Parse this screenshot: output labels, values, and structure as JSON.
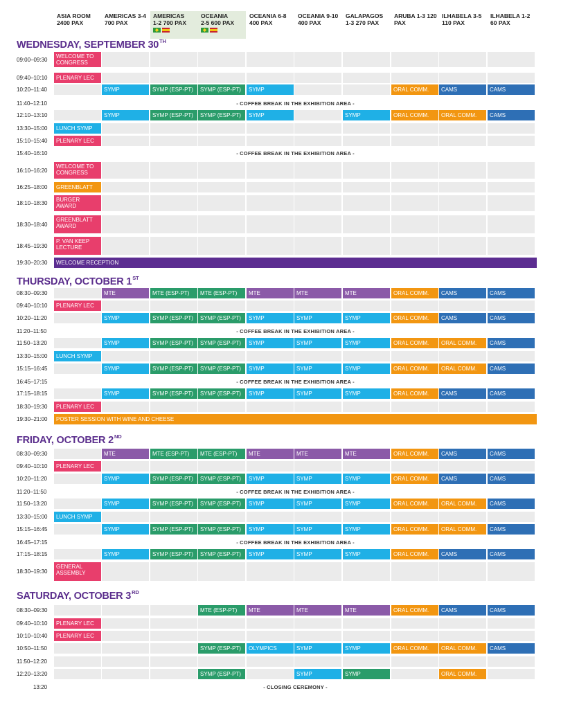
{
  "header": {
    "columns": [
      {
        "name": "ASIA ROOM",
        "cap": "2400 PAX"
      },
      {
        "name": "AMERICAS 3-4",
        "cap": "700 PAX"
      },
      {
        "name": "AMERICAS",
        "cap": "1-2 700 PAX",
        "flags": true
      },
      {
        "name": "OCEANIA",
        "cap": "2-5 600 PAX",
        "flags": true
      },
      {
        "name": "OCEANIA 6-8",
        "cap": "400 PAX"
      },
      {
        "name": "OCEANIA 9-10",
        "cap": "400 PAX"
      },
      {
        "name": "GALAPAGOS",
        "cap": "1-3 270 PAX"
      },
      {
        "name": "ARUBA 1-3 120",
        "cap": "PAX"
      },
      {
        "name": "ILHABELA 3-5",
        "cap": "110 PAX"
      },
      {
        "name": "ILHABELA 1-2",
        "cap": "60 PAX"
      }
    ]
  },
  "colors": {
    "pink": "#e83e6c",
    "blue": "#1fb0e6",
    "green": "#2a9c6a",
    "orange": "#f29611",
    "navy": "#2e6fb5",
    "purple": "#8b5aa8",
    "deeppurple": "#5c2d91",
    "gray": "#ebebeb"
  },
  "days": [
    {
      "title": "WEDNESDAY, SEPTEMBER 30",
      "sup": "TH",
      "rows": [
        {
          "time": "09:00–09:30",
          "cells": [
            [
              "WELCOME TO CONGRESS",
              "pink"
            ]
          ]
        },
        {
          "time": "09:40–10:10",
          "cells": [
            [
              "PLENARY LEC",
              "pink"
            ]
          ]
        },
        {
          "time": "10:20–11:40",
          "cells": [
            null,
            [
              "SYMP",
              "blue"
            ],
            [
              "SYMP (ESP-PT)",
              "green"
            ],
            [
              "SYMP (ESP-PT)",
              "green"
            ],
            [
              "SYMP",
              "blue"
            ],
            null,
            null,
            [
              "ORAL COMM.",
              "orange"
            ],
            [
              "CAMS",
              "navy"
            ],
            [
              "CAMS",
              "navy"
            ]
          ]
        },
        {
          "time": "11:40–12:10",
          "break": "- COFFEE BREAK IN THE EXHIBITION AREA -"
        },
        {
          "time": "12:10–13:10",
          "cells": [
            null,
            [
              "SYMP",
              "blue"
            ],
            [
              "SYMP (ESP-PT)",
              "green"
            ],
            [
              "SYMP (ESP-PT)",
              "green"
            ],
            [
              "SYMP",
              "blue"
            ],
            null,
            [
              "SYMP",
              "blue"
            ],
            [
              "ORAL COMM.",
              "orange"
            ],
            [
              "ORAL COMM.",
              "orange"
            ],
            [
              "CAMS",
              "navy"
            ]
          ]
        },
        {
          "time": "13:30–15:00",
          "cells": [
            [
              "LUNCH SYMP",
              "blue"
            ]
          ]
        },
        {
          "time": "15:10–15:40",
          "cells": [
            [
              "PLENARY LEC",
              "pink"
            ]
          ]
        },
        {
          "time": "15:40–16:10",
          "break": "- COFFEE BREAK IN THE EXHIBITION AREA -"
        },
        {
          "time": "16:10–16:20",
          "cells": [
            [
              "WELCOME TO CONGRESS",
              "pink"
            ]
          ]
        },
        {
          "time": "16:25–18:00",
          "cells": [
            [
              "GREENBLATT",
              "orange"
            ]
          ]
        },
        {
          "time": "18:10–18:30",
          "cells": [
            [
              "BURGER AWARD",
              "pink"
            ]
          ]
        },
        {
          "time": "18:30–18:40",
          "cells": [
            [
              "GREENBLATT AWARD",
              "pink"
            ]
          ]
        },
        {
          "time": "18:45–19:30",
          "cells": [
            [
              "P. VAN KEEP LECTURE",
              "pink"
            ]
          ]
        },
        {
          "time": "19:30–20:30",
          "span": [
            "WELCOME RECEPTION",
            "deeppurple"
          ]
        }
      ]
    },
    {
      "title": "THURSDAY, OCTOBER 1",
      "sup": "ST",
      "rows": [
        {
          "time": "08:30–09:30",
          "cells": [
            null,
            [
              "MTE",
              "purple"
            ],
            [
              "MTE (ESP-PT)",
              "green"
            ],
            [
              "MTE (ESP-PT)",
              "green"
            ],
            [
              "MTE",
              "purple"
            ],
            [
              "MTE",
              "purple"
            ],
            [
              "MTE",
              "purple"
            ],
            [
              "ORAL COMM.",
              "orange"
            ],
            [
              "CAMS",
              "navy"
            ],
            [
              "CAMS",
              "navy"
            ]
          ]
        },
        {
          "time": "09:40–10:10",
          "cells": [
            [
              "PLENARY LEC",
              "pink"
            ]
          ]
        },
        {
          "time": "10:20–11:20",
          "cells": [
            null,
            [
              "SYMP",
              "blue"
            ],
            [
              "SYMP (ESP-PT)",
              "green"
            ],
            [
              "SYMP (ESP-PT)",
              "green"
            ],
            [
              "SYMP",
              "blue"
            ],
            [
              "SYMP",
              "blue"
            ],
            [
              "SYMP",
              "blue"
            ],
            [
              "ORAL COMM.",
              "orange"
            ],
            [
              "CAMS",
              "navy"
            ],
            [
              "CAMS",
              "navy"
            ]
          ]
        },
        {
          "time": "11:20–11:50",
          "break": "- COFFEE BREAK IN THE EXHIBITION AREA -"
        },
        {
          "time": "11:50–13:20",
          "cells": [
            null,
            [
              "SYMP",
              "blue"
            ],
            [
              "SYMP (ESP-PT)",
              "green"
            ],
            [
              "SYMP (ESP-PT)",
              "green"
            ],
            [
              "SYMP",
              "blue"
            ],
            [
              "SYMP",
              "blue"
            ],
            [
              "SYMP",
              "blue"
            ],
            [
              "ORAL COMM.",
              "orange"
            ],
            [
              "ORAL COMM.",
              "orange"
            ],
            [
              "CAMS",
              "navy"
            ]
          ]
        },
        {
          "time": "13:30–15:00",
          "cells": [
            [
              "LUNCH SYMP",
              "blue"
            ]
          ]
        },
        {
          "time": "15:15–16:45",
          "cells": [
            null,
            [
              "SYMP",
              "blue"
            ],
            [
              "SYMP (ESP-PT)",
              "green"
            ],
            [
              "SYMP (ESP-PT)",
              "green"
            ],
            [
              "SYMP",
              "blue"
            ],
            [
              "SYMP",
              "blue"
            ],
            [
              "SYMP",
              "blue"
            ],
            [
              "ORAL COMM.",
              "orange"
            ],
            [
              "ORAL COMM.",
              "orange"
            ],
            [
              "CAMS",
              "navy"
            ]
          ]
        },
        {
          "time": "16:45–17:15",
          "break": "- COFFEE BREAK IN THE EXHIBITION AREA -"
        },
        {
          "time": "17:15–18:15",
          "cells": [
            null,
            [
              "SYMP",
              "blue"
            ],
            [
              "SYMP (ESP-PT)",
              "green"
            ],
            [
              "SYMP (ESP-PT)",
              "green"
            ],
            [
              "SYMP",
              "blue"
            ],
            [
              "SYMP",
              "blue"
            ],
            [
              "SYMP",
              "blue"
            ],
            [
              "ORAL COMM.",
              "orange"
            ],
            [
              "CAMS",
              "navy"
            ],
            [
              "CAMS",
              "navy"
            ]
          ]
        },
        {
          "time": "18:30–19:30",
          "cells": [
            [
              "PLENARY LEC",
              "pink"
            ]
          ]
        },
        {
          "time": "19:30–21:00",
          "span": [
            "POSTER SESSION WITH WINE AND CHEESE",
            "orange"
          ]
        }
      ]
    },
    {
      "title": "FRIDAY, OCTOBER 2",
      "sup": "ND",
      "rows": [
        {
          "time": "08:30–09:30",
          "cells": [
            null,
            [
              "MTE",
              "purple"
            ],
            [
              "MTE (ESP-PT)",
              "green"
            ],
            [
              "MTE (ESP-PT)",
              "green"
            ],
            [
              "MTE",
              "purple"
            ],
            [
              "MTE",
              "purple"
            ],
            [
              "MTE",
              "purple"
            ],
            [
              "ORAL COMM.",
              "orange"
            ],
            [
              "CAMS",
              "navy"
            ],
            [
              "CAMS",
              "navy"
            ]
          ]
        },
        {
          "time": "09:40–10:10",
          "cells": [
            [
              "PLENARY LEC",
              "pink"
            ]
          ]
        },
        {
          "time": "10:20–11:20",
          "cells": [
            null,
            [
              "SYMP",
              "blue"
            ],
            [
              "SYMP (ESP-PT)",
              "green"
            ],
            [
              "SYMP (ESP-PT)",
              "green"
            ],
            [
              "SYMP",
              "blue"
            ],
            [
              "SYMP",
              "blue"
            ],
            [
              "SYMP",
              "blue"
            ],
            [
              "ORAL COMM.",
              "orange"
            ],
            [
              "CAMS",
              "navy"
            ],
            [
              "CAMS",
              "navy"
            ]
          ]
        },
        {
          "time": "11:20–11:50",
          "break": "- COFFEE BREAK IN THE EXHIBITION AREA -"
        },
        {
          "time": "11:50–13:20",
          "cells": [
            null,
            [
              "SYMP",
              "blue"
            ],
            [
              "SYMP (ESP-PT)",
              "green"
            ],
            [
              "SYMP (ESP-PT)",
              "green"
            ],
            [
              "SYMP",
              "blue"
            ],
            [
              "SYMP",
              "blue"
            ],
            [
              "SYMP",
              "blue"
            ],
            [
              "ORAL COMM.",
              "orange"
            ],
            [
              "ORAL COMM.",
              "orange"
            ],
            [
              "CAMS",
              "navy"
            ]
          ]
        },
        {
          "time": "13:30–15:00",
          "cells": [
            [
              "LUNCH SYMP",
              "blue"
            ]
          ]
        },
        {
          "time": "15:15–16:45",
          "cells": [
            null,
            [
              "SYMP",
              "blue"
            ],
            [
              "SYMP (ESP-PT)",
              "green"
            ],
            [
              "SYMP (ESP-PT)",
              "green"
            ],
            [
              "SYMP",
              "blue"
            ],
            [
              "SYMP",
              "blue"
            ],
            [
              "SYMP",
              "blue"
            ],
            [
              "ORAL COMM.",
              "orange"
            ],
            [
              "ORAL COMM.",
              "orange"
            ],
            [
              "CAMS",
              "navy"
            ]
          ]
        },
        {
          "time": "16:45–17:15",
          "break": "- COFFEE BREAK IN THE EXHIBITION AREA -"
        },
        {
          "time": "17:15–18:15",
          "cells": [
            null,
            [
              "SYMP",
              "blue"
            ],
            [
              "SYMP (ESP-PT)",
              "green"
            ],
            [
              "SYMP (ESP-PT)",
              "green"
            ],
            [
              "SYMP",
              "blue"
            ],
            [
              "SYMP",
              "blue"
            ],
            [
              "SYMP",
              "blue"
            ],
            [
              "ORAL COMM.",
              "orange"
            ],
            [
              "CAMS",
              "navy"
            ],
            [
              "CAMS",
              "navy"
            ]
          ]
        },
        {
          "time": "18:30–19:30",
          "cells": [
            [
              "GENERAL ASSEMBLY",
              "pink"
            ]
          ]
        }
      ]
    },
    {
      "title": "SATURDAY, OCTOBER 3",
      "sup": "RD",
      "rows": [
        {
          "time": "08:30–09:30",
          "cells": [
            null,
            null,
            null,
            [
              "MTE (ESP-PT)",
              "green"
            ],
            [
              "MTE",
              "purple"
            ],
            [
              "MTE",
              "purple"
            ],
            [
              "MTE",
              "purple"
            ],
            [
              "ORAL COMM.",
              "orange"
            ],
            [
              "CAMS",
              "navy"
            ],
            [
              "CAMS",
              "navy"
            ]
          ]
        },
        {
          "time": "09:40–10:10",
          "cells": [
            [
              "PLENARY LEC",
              "pink"
            ]
          ]
        },
        {
          "time": "10:10–10:40",
          "cells": [
            [
              "PLENARY LEC",
              "pink"
            ]
          ]
        },
        {
          "time": "10:50–11:50",
          "cells": [
            null,
            null,
            null,
            [
              "SYMP (ESP-PT)",
              "green"
            ],
            [
              "OLYMPICS",
              "blue"
            ],
            [
              "SYMP",
              "blue"
            ],
            [
              "SYMP",
              "blue"
            ],
            [
              "ORAL COMM.",
              "orange"
            ],
            [
              "ORAL COMM.",
              "orange"
            ],
            [
              "CAMS",
              "navy"
            ]
          ]
        },
        {
          "time": "11:50–12:20",
          "cells": []
        },
        {
          "time": "12:20–13:20",
          "cells": [
            null,
            null,
            null,
            [
              "SYMP (ESP-PT)",
              "green"
            ],
            null,
            [
              "SYMP",
              "blue"
            ],
            [
              "SYMP",
              "green"
            ],
            null,
            [
              "ORAL COMM.",
              "orange"
            ],
            null
          ]
        },
        {
          "time": "13:20",
          "break": "- CLOSING CEREMONY -",
          "closing": true
        }
      ]
    }
  ]
}
